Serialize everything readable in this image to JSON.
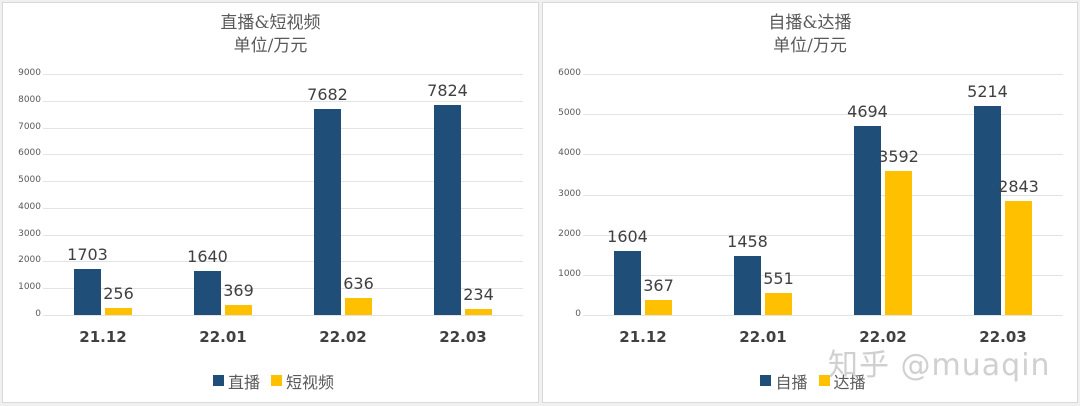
{
  "chart_data": [
    {
      "type": "bar",
      "title": "直播&短视频",
      "subtitle": "单位/万元",
      "xlabel": "",
      "ylabel": "",
      "categories": [
        "21.12",
        "22.01",
        "22.02",
        "22.03"
      ],
      "series": [
        {
          "name": "直播",
          "color": "#1f4e79",
          "values": [
            1703,
            1640,
            7682,
            7824
          ]
        },
        {
          "name": "短视频",
          "color": "#ffc000",
          "values": [
            256,
            369,
            636,
            234
          ]
        }
      ],
      "yticks": [
        0,
        1000,
        2000,
        3000,
        4000,
        5000,
        6000,
        7000,
        8000,
        9000
      ],
      "ylim": [
        0,
        9000
      ],
      "grid": true,
      "legend_position": "bottom"
    },
    {
      "type": "bar",
      "title": "自播&达播",
      "subtitle": "单位/万元",
      "xlabel": "",
      "ylabel": "",
      "categories": [
        "21.12",
        "22.01",
        "22.02",
        "22.03"
      ],
      "series": [
        {
          "name": "自播",
          "color": "#1f4e79",
          "values": [
            1604,
            1458,
            4694,
            5214
          ]
        },
        {
          "name": "达播",
          "color": "#ffc000",
          "values": [
            367,
            551,
            3592,
            2843
          ]
        }
      ],
      "yticks": [
        0,
        1000,
        2000,
        3000,
        4000,
        5000,
        6000
      ],
      "ylim": [
        0,
        6000
      ],
      "grid": true,
      "legend_position": "bottom"
    }
  ],
  "watermark": "知乎 @muaqin"
}
